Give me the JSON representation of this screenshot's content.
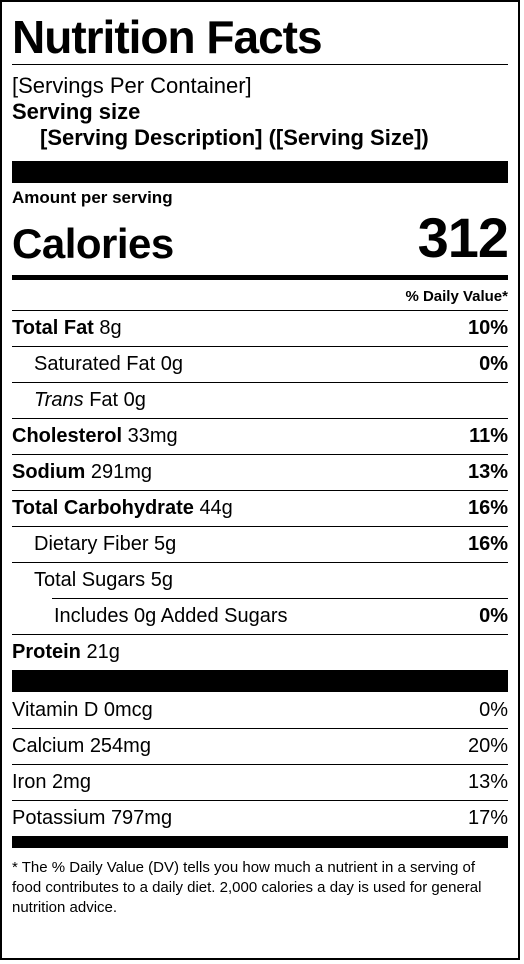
{
  "title": "Nutrition Facts",
  "servings_per_container": "[Servings Per Container]",
  "serving_size_label": "Serving size",
  "serving_description": "[Serving Description] ([Serving Size])",
  "amount_per_serving": "Amount per serving",
  "calories_label": "Calories",
  "calories_value": "312",
  "daily_value_header": "% Daily Value*",
  "nutrients": [
    {
      "name": "Total Fat",
      "amount": "8g",
      "pct": "10%"
    },
    {
      "name": "Saturated Fat",
      "amount": "0g",
      "pct": "0%"
    },
    {
      "name": "Trans",
      "amount": "Fat 0g",
      "pct": ""
    },
    {
      "name": "Cholesterol",
      "amount": "33mg",
      "pct": "11%"
    },
    {
      "name": "Sodium",
      "amount": "291mg",
      "pct": "13%"
    },
    {
      "name": "Total Carbohydrate",
      "amount": "44g",
      "pct": "16%"
    },
    {
      "name": "Dietary Fiber",
      "amount": "5g",
      "pct": "16%"
    },
    {
      "name": "Total Sugars",
      "amount": "5g",
      "pct": ""
    },
    {
      "name": "Includes 0g Added Sugars",
      "amount": "",
      "pct": "0%"
    },
    {
      "name": "Protein",
      "amount": "21g",
      "pct": ""
    }
  ],
  "vitamins": [
    {
      "name": "Vitamin D",
      "amount": "0mcg",
      "pct": "0%"
    },
    {
      "name": "Calcium",
      "amount": "254mg",
      "pct": "20%"
    },
    {
      "name": "Iron",
      "amount": "2mg",
      "pct": "13%"
    },
    {
      "name": "Potassium",
      "amount": "797mg",
      "pct": "17%"
    }
  ],
  "footnote": "* The % Daily Value (DV) tells you how much a nutrient in a serving of food contributes to a daily diet. 2,000 calories a day is used for general nutrition advice."
}
